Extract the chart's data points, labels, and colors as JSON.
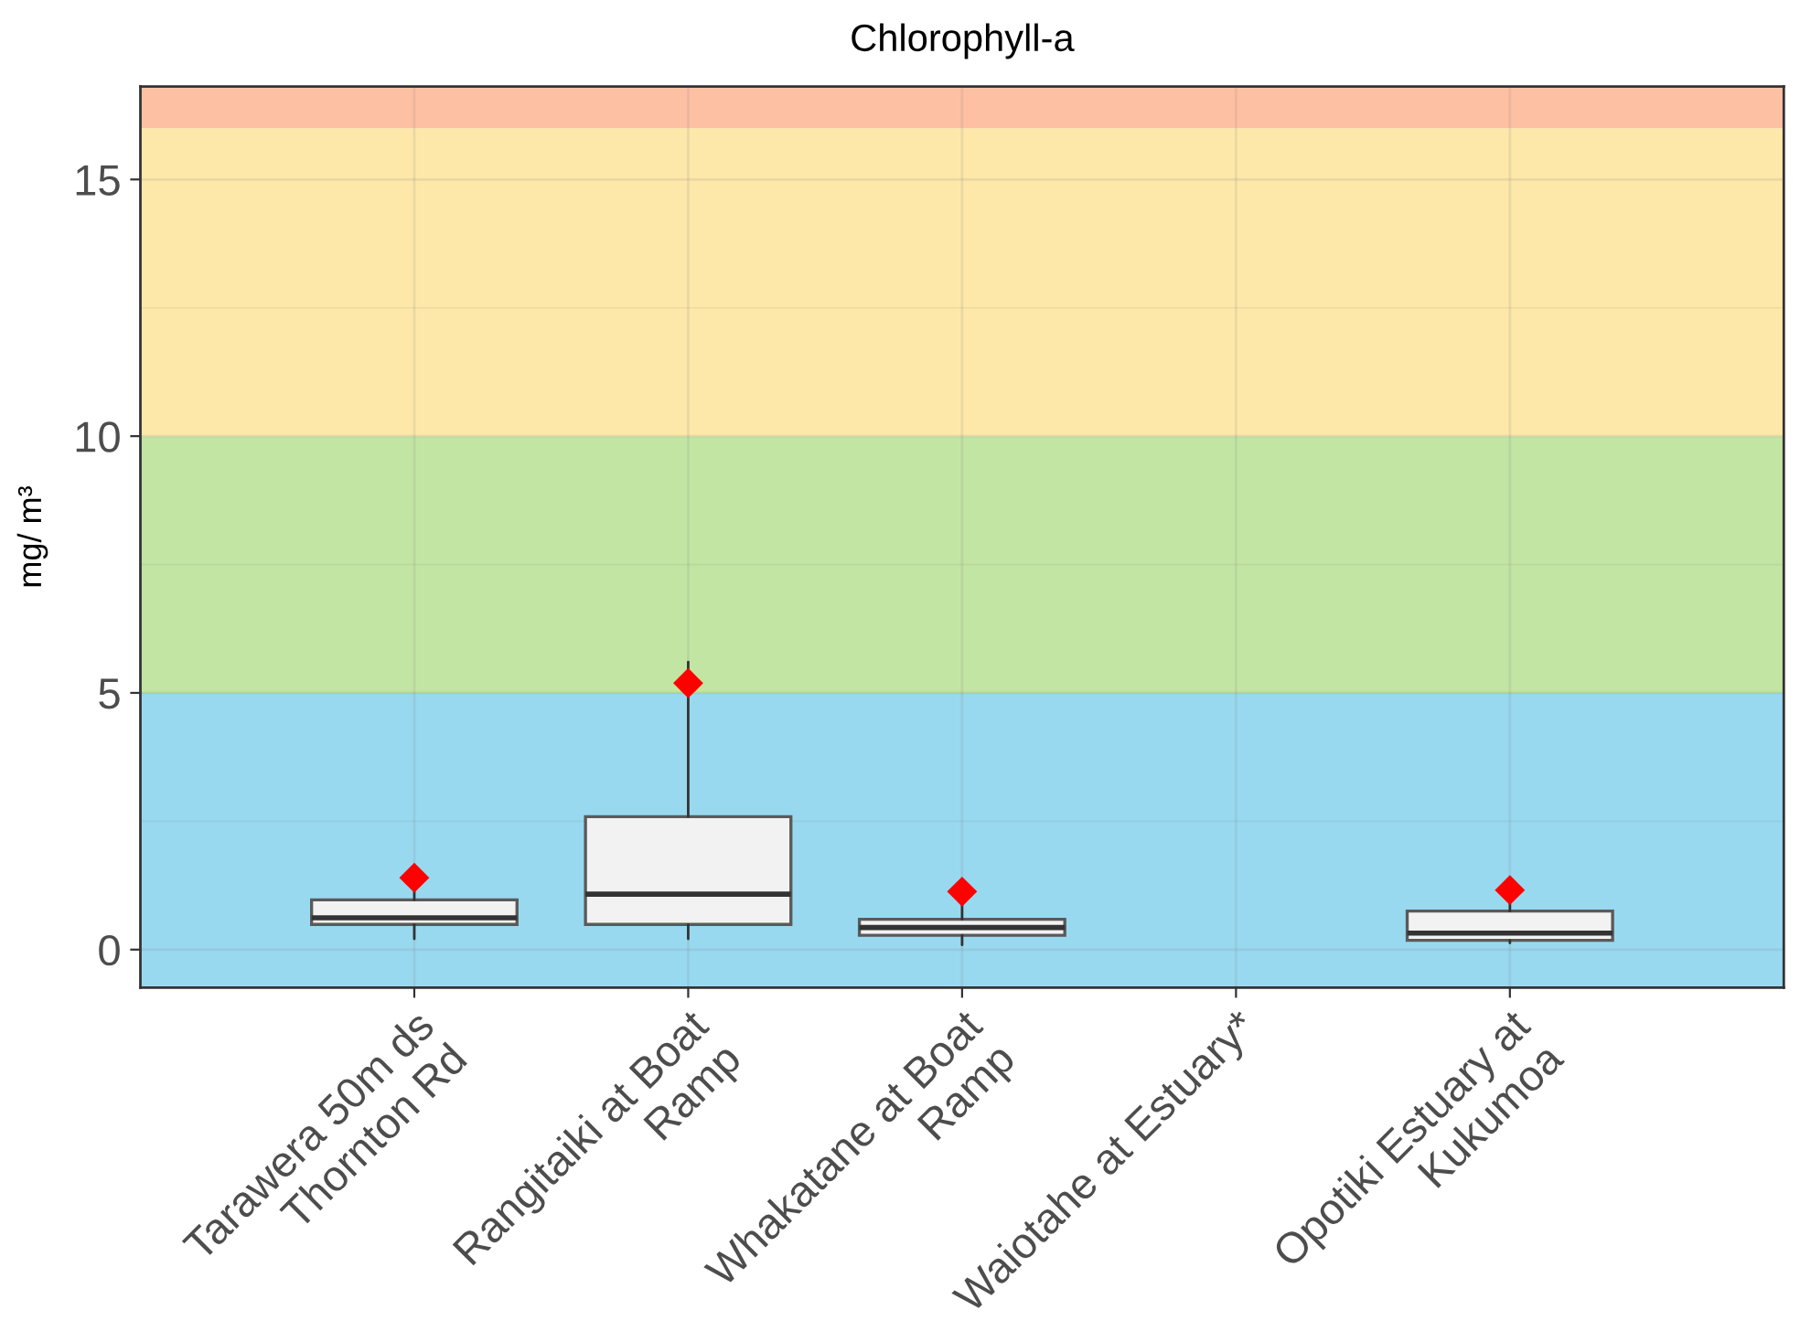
{
  "chart_data": {
    "type": "box",
    "title": "Chlorophyll-a",
    "ylabel": "mg/ m³",
    "categories": [
      "Tarawera 50m ds\nThornton Rd",
      "Rangitaiki at Boat\nRamp",
      "Whakatane at Boat\nRamp",
      "Waiotahe at Estuary*",
      "Opotiki Estuary at\nKukumoa"
    ],
    "series": [
      {
        "color": "#f2f2f2",
        "boxes": [
          {
            "low": 0.21,
            "q1": 0.49,
            "median": 0.62,
            "q3": 0.97,
            "high": 1.16
          },
          {
            "low": 0.21,
            "q1": 0.49,
            "median": 1.08,
            "q3": 2.59,
            "high": 5.6
          },
          {
            "low": 0.09,
            "q1": 0.28,
            "median": 0.43,
            "q3": 0.59,
            "high": 0.93
          },
          null,
          {
            "low": 0.13,
            "q1": 0.18,
            "median": 0.32,
            "q3": 0.75,
            "high": 0.98
          }
        ]
      },
      {
        "type": "scatter",
        "color": "#ff0000",
        "values": [
          1.4,
          5.19,
          1.13,
          null,
          1.16
        ]
      }
    ],
    "marker": "diamond",
    "ylim": [
      -0.74,
      16.81
    ],
    "yticks": [
      0,
      5,
      10,
      15
    ],
    "grid": true,
    "bands": [
      {
        "axis": "y",
        "from": -0.74,
        "to": 5,
        "color": "#98d9f0"
      },
      {
        "axis": "y",
        "from": 5,
        "to": 10,
        "color": "#c2e5a3"
      },
      {
        "axis": "y",
        "from": 10,
        "to": 16,
        "color": "#fde8a9"
      },
      {
        "axis": "y",
        "from": 16,
        "to": 16.81,
        "color": "#fec0a3"
      }
    ]
  }
}
